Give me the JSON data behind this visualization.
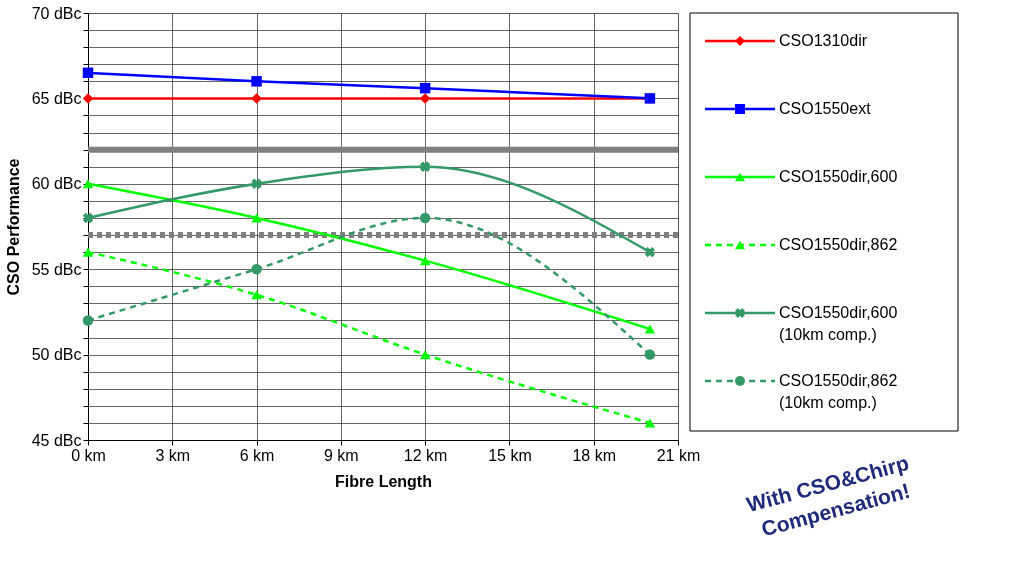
{
  "chart_data": {
    "type": "line",
    "xlabel": "Fibre Length",
    "ylabel": "CSO Performance",
    "xlim": [
      0,
      21
    ],
    "xticks": [
      {
        "value": 0,
        "label": "0 km"
      },
      {
        "value": 3,
        "label": "3 km"
      },
      {
        "value": 6,
        "label": "6 km"
      },
      {
        "value": 9,
        "label": "9 km"
      },
      {
        "value": 12,
        "label": "12 km"
      },
      {
        "value": 15,
        "label": "15 km"
      },
      {
        "value": 18,
        "label": "18 km"
      },
      {
        "value": 21,
        "label": "21 km"
      }
    ],
    "ylim": [
      45,
      70
    ],
    "yticks": [
      {
        "value": 45,
        "label": "45 dBc"
      },
      {
        "value": 46,
        "label": null
      },
      {
        "value": 47,
        "label": null
      },
      {
        "value": 48,
        "label": null
      },
      {
        "value": 49,
        "label": null
      },
      {
        "value": 50,
        "label": "50 dBc"
      },
      {
        "value": 51,
        "label": null
      },
      {
        "value": 52,
        "label": null
      },
      {
        "value": 53,
        "label": null
      },
      {
        "value": 54,
        "label": null
      },
      {
        "value": 55,
        "label": "55 dBc"
      },
      {
        "value": 56,
        "label": null
      },
      {
        "value": 57,
        "label": null
      },
      {
        "value": 58,
        "label": null
      },
      {
        "value": 59,
        "label": null
      },
      {
        "value": 60,
        "label": "60 dBc"
      },
      {
        "value": 61,
        "label": null
      },
      {
        "value": 62,
        "label": null
      },
      {
        "value": 63,
        "label": null
      },
      {
        "value": 64,
        "label": null
      },
      {
        "value": 65,
        "label": "65 dBc"
      },
      {
        "value": 66,
        "label": null
      },
      {
        "value": 67,
        "label": null
      },
      {
        "value": 68,
        "label": null
      },
      {
        "value": 69,
        "label": null
      },
      {
        "value": 70,
        "label": "70 dBc"
      }
    ],
    "x": [
      0,
      6,
      12,
      20
    ],
    "series": [
      {
        "name": "CSO1310dir",
        "color": "#ff0000",
        "marker": "diamond",
        "line_style": "solid",
        "values": [
          65,
          65,
          65,
          65
        ]
      },
      {
        "name": "CSO1550ext",
        "color": "#0000ff",
        "marker": "square",
        "line_style": "solid",
        "values": [
          66.5,
          66,
          65.6,
          65
        ]
      },
      {
        "name": "CSO1550dir,600",
        "color": "#00ff00",
        "marker": "triangle",
        "line_style": "solid",
        "values": [
          60,
          58,
          55.5,
          51.5
        ]
      },
      {
        "name": "CSO1550dir,862",
        "color": "#00ff00",
        "marker": "triangle",
        "line_style": "dashed",
        "values": [
          56,
          53.5,
          50,
          46
        ]
      },
      {
        "name": "CSO1550dir,600 (10km comp.)",
        "color": "#339966",
        "marker": "cross",
        "line_style": "solid",
        "values": [
          58,
          60,
          61,
          56
        ]
      },
      {
        "name": "CSO1550dir,862 (10km comp.)",
        "color": "#339966",
        "marker": "circle",
        "line_style": "dashed",
        "values": [
          52,
          55,
          58,
          50
        ]
      }
    ],
    "ref_lines": [
      {
        "axis": "y",
        "value": 62,
        "color": "#808080",
        "line_style": "solid"
      },
      {
        "axis": "y",
        "value": 57,
        "color": "#808080",
        "line_style": "dotted"
      }
    ],
    "annotations": [
      "With CSO&Chirp Compensation!"
    ],
    "legend": "right",
    "grid": true
  }
}
